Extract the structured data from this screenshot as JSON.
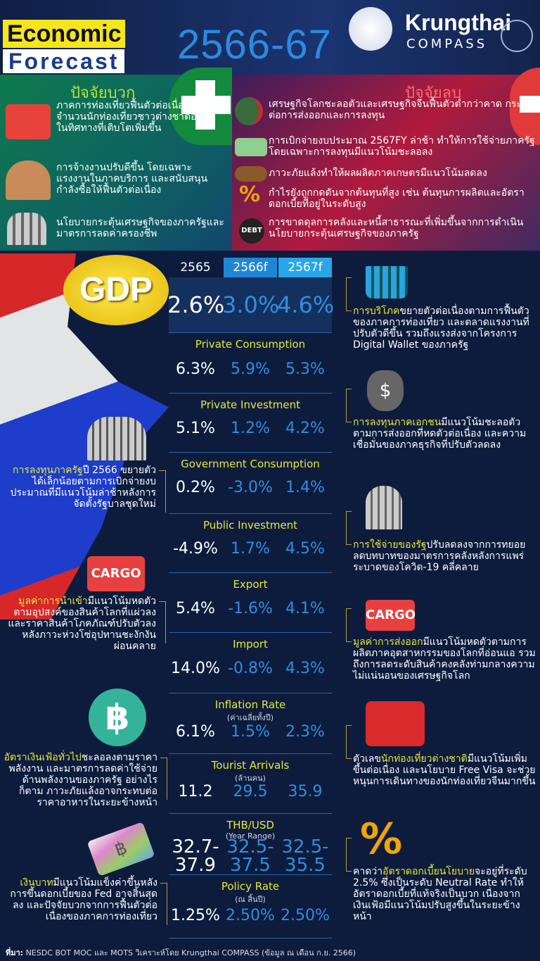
{
  "header": {
    "title_line1": "Economic",
    "title_line2": "Forecast",
    "years": "2566-67",
    "brand": "Krungthai",
    "brand_sub": "COMPASS"
  },
  "positive": {
    "title": "ปัจจัยบวก",
    "items": [
      {
        "icon": "suitcase-icon",
        "text": "ภาคการท่องเที่ยวฟื้นตัวต่อเนื่อง โดยจำนวนนักท่องเที่ยวชาวต่างชาติอยู่ในทิศทางที่เติบโตเพิ่มขึ้น"
      },
      {
        "icon": "workers-icon",
        "text": "การจ้างงานปรับดีขึ้น โดยเฉพาะแรงงานในภาคบริการ และสนับสนุนกำลังซื้อให้ฟื้นตัวต่อเนื่อง"
      },
      {
        "icon": "government-building-icon",
        "text": "นโยบายกระตุ้นเศรษฐกิจของภาครัฐและมาตรการลดค่าครองชีพ"
      }
    ]
  },
  "negative": {
    "title": "ปัจจัยลบ",
    "items": [
      {
        "icon": "globe-down-arrow-icon",
        "text": "เศรษฐกิจโลกชะลอตัวและเศรษฐกิจจีนฟื้นตัวต่ำกว่าคาด กระทบต่อการส่งออกและการลงทุน"
      },
      {
        "icon": "money-hand-icon",
        "text": "การเบิกจ่ายงบประมาณ 2567FY ล่าช้า ทำให้การใช้จ่ายภาครัฐโดยเฉพาะการลงทุนมีแนวโน้มชะลอลง"
      },
      {
        "icon": "dry-soil-icon",
        "text": "ภาวะภัยแล้งทำให้ผลผลิตภาคเกษตรมีแนวโน้มลดลง"
      },
      {
        "icon": "percent-up-icon",
        "text": "กำไรยังถูกกดดันจากต้นทุนที่สูง เช่น ต้นทุนการผลิตและอัตราดอกเบี้ยที่อยู่ในระดับสูง"
      },
      {
        "icon": "debt-bomb-icon",
        "text": "การขาดดุลการคลังและหนี้สาธารณะที่เพิ่มขึ้นจากการดำเนินนโยบายกระตุ้นเศรษฐกิจของภาครัฐ",
        "badge": "DEBT"
      }
    ]
  },
  "table": {
    "gdp_label": "GDP",
    "columns": [
      "2565",
      "2566f",
      "2567f"
    ],
    "rows": [
      {
        "label": "GDP",
        "values": [
          "2.6%",
          "3.0%",
          "4.6%"
        ]
      },
      {
        "label": "Private Consumption",
        "values": [
          "6.3%",
          "5.9%",
          "5.3%"
        ]
      },
      {
        "label": "Private Investment",
        "values": [
          "5.1%",
          "1.2%",
          "4.2%"
        ]
      },
      {
        "label": "Government Consumption",
        "values": [
          "0.2%",
          "-3.0%",
          "1.4%"
        ]
      },
      {
        "label": "Public Investment",
        "values": [
          "-4.9%",
          "1.7%",
          "4.5%"
        ]
      },
      {
        "label": "Export",
        "values": [
          "5.4%",
          "-1.6%",
          "4.1%"
        ]
      },
      {
        "label": "Import",
        "values": [
          "14.0%",
          "-0.8%",
          "4.3%"
        ]
      },
      {
        "label": "Inflation Rate",
        "sub": "(ค่าเฉลี่ยทั้งปี)",
        "values": [
          "6.1%",
          "1.5%",
          "2.3%"
        ]
      },
      {
        "label": "Tourist Arrivals",
        "sub": "(ล้านคน)",
        "values": [
          "11.2",
          "29.5",
          "35.9"
        ]
      },
      {
        "label": "THB/USD",
        "sub": "(Year Range)",
        "values": [
          "32.7-\n37.9",
          "32.5-\n37.5",
          "32.5-\n35.5"
        ]
      },
      {
        "label": "Policy Rate",
        "sub": "(ณ สิ้นปี)",
        "values": [
          "1.25%",
          "2.50%",
          "2.50%"
        ]
      }
    ]
  },
  "notes": {
    "consumption": {
      "pre": "",
      "hl": "การบริโภค",
      "post": "ขยายตัวต่อเนื่องตามการฟื้นตัวของภาคการท่องเที่ยว และตลาดแรงงานที่ปรับตัวดีขึ้น รวมถึงแรงส่งจากโครงการ Digital Wallet ของภาครัฐ"
    },
    "private_investment": {
      "pre": "",
      "hl": "การลงทุนภาคเอกชน",
      "post": "มีแนวโน้มชะลอตัวตามการส่งออกที่หดตัวต่อเนื่อง และความเชื่อมั่นของภาคธุรกิจที่ปรับตัวลดลง"
    },
    "public_investment": {
      "pre": "",
      "hl": "การลงทุนภาครัฐ",
      "post": "ปี 2566 ขยายตัวได้เล็กน้อยตามการเบิกจ่ายงบประมาณที่มีแนวโน้มล่าช้าหลังการจัดตั้งรัฐบาลชุดใหม่"
    },
    "gov_spending": {
      "pre": "",
      "hl": "การใช้จ่ายของรัฐ",
      "post": "ปรับลดลงจากการทยอยลดบทบาทของมาตรการคลังหลังการแพร่ระบาดของโควิด-19 คลี่คลาย"
    },
    "import": {
      "pre": "",
      "hl": "มูลค่าการนำเข้า",
      "post": "มีแนวโน้มหดตัวตามอุปสงค์ของสินค้าโลกที่แผ่วลง และราคาสินค้าโภคภัณฑ์ปรับตัวลงหลังภาวะห่วงโซ่อุปทานชะงักงันผ่อนคลาย"
    },
    "export": {
      "pre": "",
      "hl": "มูลค่าการส่งออก",
      "post": "มีแนวโน้มหดตัวตามการผลิตภาคอุตสาหกรรมของโลกที่อ่อนแอ รวมถึงการลดระดับสินค้าคงคลังท่ามกลางความไม่แน่นอนของเศรษฐกิจโลก"
    },
    "inflation": {
      "pre": "",
      "hl": "อัตราเงินเฟ้อทั่วไป",
      "post": "ชะลอลงตามราคาพลังงาน และมาตรการลดค่าใช้จ่ายด้านพลังงานของภาครัฐ อย่างไรก็ตาม ภาวะภัยแล้งอาจกระทบต่อราคาอาหารในระยะข้างหน้า"
    },
    "tourist": {
      "pre": "ตัวเลข",
      "hl": "นักท่องเที่ยวต่างชาติ",
      "post": "มีแนวโน้มเพิ่มขึ้นต่อเนื่อง และนโยบาย Free Visa จะช่วยหนุนการเดินทางของนักท่องเที่ยวจีนมากขึ้น"
    },
    "baht": {
      "pre": "",
      "hl": "เงินบาท",
      "post": "มีแนวโน้มแข็งค่าขึ้นหลังการขึ้นดอกเบี้ยของ Fed อาจสิ้นสุดลง และปัจจัยบวกจากการฟื้นตัวต่อเนื่องของภาคการท่องเที่ยว"
    },
    "policy_rate": {
      "pre": "คาดว่า",
      "hl": "อัตราดอกเบี้ยนโยบาย",
      "post": "จะอยู่ที่ระดับ 2.5% ซึ่งเป็นระดับ Neutral Rate ทำให้อัตราดอกเบี้ยที่แท้จริงเป็นบวก เนื่องจากเงินเฟ้อมีแนวโน้มปรับสูงขึ้นในระยะข้างหน้า"
    }
  },
  "icons": {
    "cargo_label": "CARGO",
    "baht_symbol": "฿",
    "dollar_symbol": "$",
    "percent_symbol": "%"
  },
  "footer": {
    "source_label": "ที่มา:",
    "source_text": "NESDC BOT MOC และ MOTS วิเคราะห์โดย Krungthai COMPASS  (ข้อมูล ณ เดือน ก.ย. 2566)"
  },
  "colors": {
    "highlight": "#e6e836",
    "forecast": "#2e8fe0",
    "background": "#0d1c3d",
    "positive": "#0d7a4e",
    "negative": "#b11a3d"
  }
}
